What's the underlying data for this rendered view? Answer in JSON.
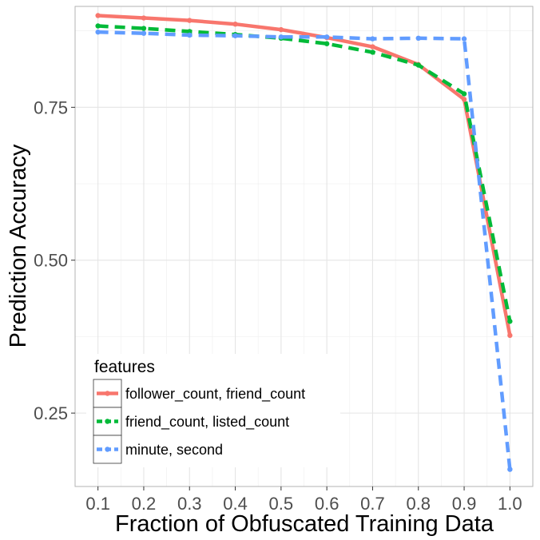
{
  "chart_data": {
    "type": "line",
    "xlabel": "Fraction of Obfuscated Training Data",
    "ylabel": "Prediction Accuracy",
    "xlim": [
      0.05,
      1.05
    ],
    "ylim": [
      0.13,
      0.915
    ],
    "x_ticks": [
      "0.1",
      "0.2",
      "0.3",
      "0.4",
      "0.5",
      "0.6",
      "0.7",
      "0.8",
      "0.9",
      "1.0"
    ],
    "y_ticks": [
      "0.25",
      "0.50",
      "0.75"
    ],
    "grid": true,
    "legend_title": "features",
    "legend_position": "bottom-left",
    "x": [
      0.1,
      0.2,
      0.3,
      0.4,
      0.5,
      0.6,
      0.7,
      0.8,
      0.9,
      1.0
    ],
    "series": [
      {
        "name": "follower_count, friend_count",
        "color": "#F8766D",
        "dash": "solid",
        "values": [
          0.9,
          0.896,
          0.892,
          0.886,
          0.877,
          0.864,
          0.849,
          0.82,
          0.763,
          0.377
        ]
      },
      {
        "name": "friend_count, listed_count",
        "color": "#00BA38",
        "dash": "dashed",
        "values": [
          0.883,
          0.879,
          0.874,
          0.869,
          0.863,
          0.854,
          0.84,
          0.819,
          0.772,
          0.4
        ]
      },
      {
        "name": "minute, second",
        "color": "#619CFF",
        "dash": "dashed",
        "values": [
          0.873,
          0.871,
          0.868,
          0.867,
          0.865,
          0.865,
          0.862,
          0.863,
          0.862,
          0.158
        ]
      }
    ]
  }
}
